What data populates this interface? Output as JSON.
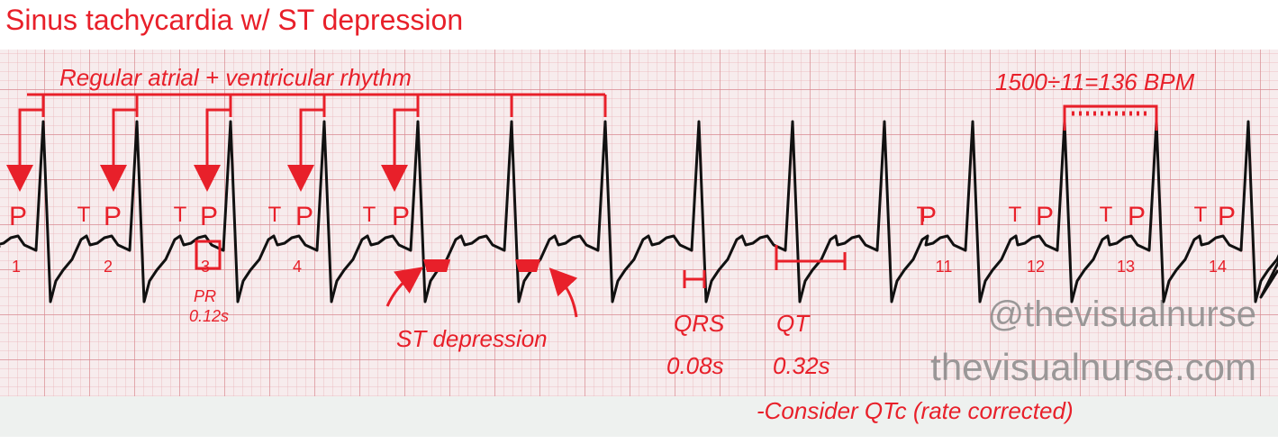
{
  "title": "Sinus tachycardia w/ ST depression",
  "rhythm_note": "Regular atrial + ventricular rhythm",
  "rate_note": "1500÷11=136 BPM",
  "p_labels": [
    "P",
    "P",
    "P",
    "P",
    "P",
    "P",
    "P",
    "P",
    "P"
  ],
  "t_labels": [
    "T",
    "T",
    "T",
    "T",
    "T",
    "T",
    "T",
    "T"
  ],
  "beat_numbers": [
    "1",
    "2",
    "3",
    "4",
    "11",
    "12",
    "13",
    "14"
  ],
  "pr": {
    "label": "PR",
    "value": "0.12s"
  },
  "st_note": "ST depression",
  "qrs": {
    "label": "QRS",
    "value": "0.08s"
  },
  "qt": {
    "label": "QT",
    "value": "0.32s"
  },
  "qtc_note": "-Consider QTc (rate corrected)",
  "watermarks": [
    "@thevisualnurse",
    "thevisualnurse.com"
  ]
}
